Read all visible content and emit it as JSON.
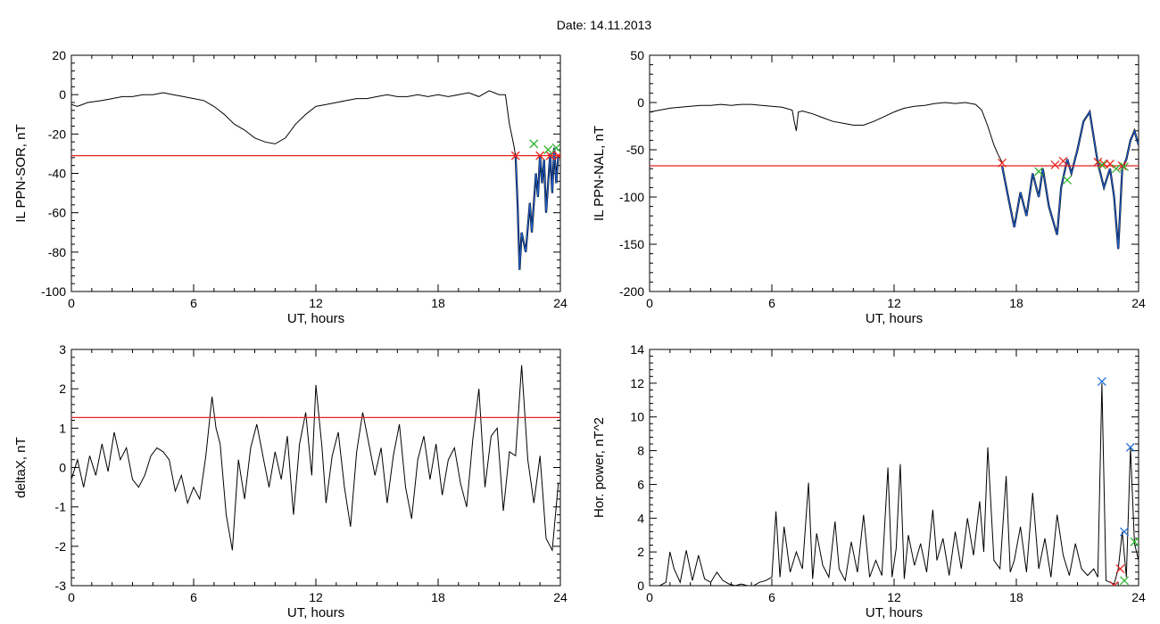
{
  "figure": {
    "title": "Date:  14.11.2013"
  },
  "colors": {
    "trace": "#000000",
    "threshold": "#e8231e",
    "segment": "#1f5fcf",
    "marker_red": "#e8231e",
    "marker_green": "#2fb52f",
    "marker_blue": "#1f6fd6"
  },
  "chart_data": [
    {
      "id": "sor",
      "type": "line",
      "title": "",
      "xlabel": "UT, hours",
      "ylabel": "IL PPN-SOR, nT",
      "xlim": [
        0,
        24
      ],
      "ylim": [
        -100,
        20
      ],
      "xticks": [
        0,
        6,
        12,
        18,
        24
      ],
      "yticks": [
        -100,
        -80,
        -60,
        -40,
        -20,
        0,
        20
      ],
      "threshold": -31,
      "x": [
        0,
        0.3,
        0.8,
        1.5,
        2.0,
        2.5,
        3.0,
        3.5,
        4.0,
        4.5,
        5.0,
        5.5,
        6.0,
        6.5,
        7.0,
        7.5,
        8.0,
        8.5,
        9.0,
        9.5,
        10.0,
        10.5,
        11.0,
        11.5,
        12.0,
        12.5,
        13.0,
        13.5,
        14.0,
        14.5,
        15.0,
        15.5,
        16.0,
        16.5,
        17.0,
        17.5,
        18.0,
        18.5,
        19.0,
        19.5,
        20.0,
        20.5,
        21.0,
        21.3,
        21.5,
        21.7,
        21.8
      ],
      "y": [
        -5,
        -6,
        -4,
        -3,
        -2,
        -1,
        -1,
        0,
        0,
        1,
        0,
        -1,
        -2,
        -3,
        -6,
        -10,
        -15,
        -18,
        -22,
        -24,
        -25,
        -22,
        -15,
        -10,
        -6,
        -5,
        -4,
        -3,
        -2,
        -2,
        -1,
        0,
        -1,
        -1,
        0,
        -1,
        0,
        -1,
        0,
        1,
        -1,
        2,
        0,
        0,
        -15,
        -25,
        -31
      ],
      "segment_x": [
        21.8,
        21.9,
        22.0,
        22.1,
        22.3,
        22.5,
        22.6,
        22.8,
        22.9,
        23.0,
        23.1,
        23.2,
        23.3,
        23.5,
        23.6,
        23.7,
        23.8,
        23.9
      ],
      "segment_y": [
        -31,
        -55,
        -89,
        -70,
        -80,
        -55,
        -70,
        -40,
        -52,
        -31,
        -45,
        -33,
        -60,
        -30,
        -50,
        -27,
        -45,
        -31
      ],
      "markers_red": [
        [
          21.8,
          -31
        ],
        [
          23.0,
          -31
        ],
        [
          23.5,
          -31
        ],
        [
          23.9,
          -31
        ]
      ],
      "markers_green": [
        [
          22.7,
          -25
        ],
        [
          23.4,
          -28
        ],
        [
          23.8,
          -27
        ]
      ]
    },
    {
      "id": "nal",
      "type": "line",
      "title": "",
      "xlabel": "UT, hours",
      "ylabel": "IL PPN-NAL, nT",
      "xlim": [
        0,
        24
      ],
      "ylim": [
        -200,
        50
      ],
      "xticks": [
        0,
        6,
        12,
        18,
        24
      ],
      "yticks": [
        -200,
        -150,
        -100,
        -50,
        0,
        50
      ],
      "threshold": -67,
      "x": [
        0,
        0.5,
        1.0,
        1.5,
        2.0,
        2.5,
        3.0,
        3.5,
        4.0,
        4.5,
        5.0,
        5.5,
        6.0,
        6.5,
        7.0,
        7.1,
        7.2,
        7.3,
        7.5,
        8.0,
        8.5,
        9.0,
        9.5,
        10.0,
        10.5,
        11.0,
        11.5,
        12.0,
        12.5,
        13.0,
        13.5,
        14.0,
        14.5,
        15.0,
        15.5,
        16.0,
        16.3,
        16.6,
        16.9,
        17.1,
        17.3
      ],
      "y": [
        -10,
        -8,
        -6,
        -5,
        -4,
        -3,
        -3,
        -2,
        -3,
        -2,
        -2,
        -3,
        -4,
        -5,
        -8,
        -20,
        -30,
        -10,
        -9,
        -12,
        -16,
        -20,
        -22,
        -24,
        -24,
        -20,
        -15,
        -10,
        -6,
        -4,
        -3,
        -1,
        0,
        -1,
        0,
        -2,
        -8,
        -25,
        -45,
        -55,
        -63
      ],
      "segment_x": [
        17.3,
        17.6,
        17.9,
        18.2,
        18.5,
        18.8,
        19.1,
        19.3,
        19.6,
        20.0,
        20.2,
        20.5,
        20.7,
        21.0,
        21.3,
        21.6,
        22.0,
        22.3,
        22.6,
        22.8,
        23.0,
        23.2,
        23.4,
        23.6,
        23.8,
        24.0
      ],
      "segment_y": [
        -67,
        -100,
        -132,
        -95,
        -120,
        -75,
        -100,
        -70,
        -110,
        -140,
        -90,
        -60,
        -75,
        -50,
        -20,
        -10,
        -64,
        -90,
        -70,
        -100,
        -155,
        -70,
        -60,
        -40,
        -30,
        -45
      ],
      "markers_red": [
        [
          17.3,
          -64
        ],
        [
          19.9,
          -66
        ],
        [
          20.3,
          -62
        ],
        [
          22.0,
          -63
        ],
        [
          22.3,
          -65
        ],
        [
          22.6,
          -65
        ],
        [
          23.2,
          -67
        ]
      ],
      "markers_green": [
        [
          19.1,
          -73
        ],
        [
          20.5,
          -82
        ],
        [
          22.2,
          -66
        ],
        [
          22.9,
          -70
        ],
        [
          23.3,
          -68
        ]
      ]
    },
    {
      "id": "deltax",
      "type": "line",
      "title": "",
      "xlabel": "UT, hours",
      "ylabel": "deltaX, nT",
      "xlim": [
        0,
        24
      ],
      "ylim": [
        -3,
        3
      ],
      "xticks": [
        0,
        6,
        12,
        18,
        24
      ],
      "yticks": [
        -3,
        -2,
        -1,
        0,
        1,
        2,
        3
      ],
      "threshold": 1.27,
      "x": [
        0,
        0.3,
        0.6,
        0.9,
        1.2,
        1.5,
        1.8,
        2.1,
        2.4,
        2.7,
        3.0,
        3.3,
        3.6,
        3.9,
        4.2,
        4.5,
        4.8,
        5.1,
        5.4,
        5.7,
        6.0,
        6.3,
        6.6,
        6.9,
        7.1,
        7.3,
        7.6,
        7.9,
        8.2,
        8.5,
        8.8,
        9.1,
        9.4,
        9.7,
        10.0,
        10.3,
        10.6,
        10.9,
        11.2,
        11.5,
        11.8,
        12.0,
        12.3,
        12.5,
        12.8,
        13.1,
        13.4,
        13.7,
        14.0,
        14.3,
        14.6,
        14.9,
        15.2,
        15.5,
        15.8,
        16.1,
        16.4,
        16.7,
        17.0,
        17.3,
        17.6,
        17.9,
        18.2,
        18.5,
        18.8,
        19.1,
        19.4,
        19.7,
        20.0,
        20.3,
        20.6,
        20.9,
        21.2,
        21.5,
        21.8,
        22.1,
        22.4,
        22.7,
        23.0,
        23.3,
        23.6,
        23.9
      ],
      "y": [
        -0.3,
        0.2,
        -0.5,
        0.3,
        -0.2,
        0.6,
        -0.1,
        0.9,
        0.2,
        0.5,
        -0.3,
        -0.5,
        -0.2,
        0.3,
        0.5,
        0.4,
        0.2,
        -0.6,
        -0.2,
        -0.9,
        -0.5,
        -0.8,
        0.3,
        1.8,
        1.0,
        0.6,
        -1.2,
        -2.1,
        0.2,
        -0.8,
        0.5,
        1.1,
        0.3,
        -0.5,
        0.4,
        -0.3,
        0.8,
        -1.2,
        0.6,
        1.4,
        -0.2,
        2.1,
        0.5,
        -0.9,
        0.3,
        0.9,
        -0.5,
        -1.5,
        0.4,
        1.4,
        0.6,
        -0.2,
        0.5,
        -0.9,
        0.3,
        1.1,
        -0.5,
        -1.3,
        0.2,
        0.8,
        -0.3,
        0.6,
        -0.7,
        0.2,
        0.5,
        -0.4,
        -1.0,
        0.7,
        2.0,
        -0.5,
        0.8,
        1.0,
        -1.1,
        0.4,
        0.3,
        2.6,
        0.2,
        -0.9,
        0.3,
        -1.8,
        -2.1,
        -0.4
      ]
    },
    {
      "id": "power",
      "type": "line",
      "title": "",
      "xlabel": "UT, hours",
      "ylabel": "Hor. power, nT^2",
      "xlim": [
        0,
        24
      ],
      "ylim": [
        0,
        14
      ],
      "xticks": [
        0,
        6,
        12,
        18,
        24
      ],
      "yticks": [
        0,
        2,
        4,
        6,
        8,
        10,
        12,
        14
      ],
      "x": [
        0,
        0.5,
        0.8,
        1.0,
        1.2,
        1.5,
        1.8,
        2.1,
        2.4,
        2.7,
        3.0,
        3.3,
        3.6,
        3.9,
        4.2,
        4.5,
        4.8,
        5.1,
        5.4,
        5.7,
        6.0,
        6.2,
        6.4,
        6.6,
        6.9,
        7.2,
        7.5,
        7.8,
        8.0,
        8.2,
        8.5,
        8.8,
        9.1,
        9.3,
        9.6,
        9.9,
        10.2,
        10.5,
        10.8,
        11.1,
        11.4,
        11.7,
        11.9,
        12.1,
        12.3,
        12.5,
        12.7,
        13.0,
        13.3,
        13.6,
        13.9,
        14.1,
        14.4,
        14.7,
        15.0,
        15.3,
        15.6,
        15.9,
        16.2,
        16.4,
        16.6,
        16.9,
        17.2,
        17.5,
        17.7,
        17.9,
        18.2,
        18.5,
        18.8,
        19.1,
        19.4,
        19.7,
        20.0,
        20.3,
        20.6,
        20.9,
        21.2,
        21.5,
        21.8,
        22.0,
        22.2,
        22.4,
        22.6,
        22.8,
        23.0,
        23.2,
        23.4,
        23.6,
        23.8,
        24.0
      ],
      "y": [
        0,
        0,
        0.2,
        2.0,
        1.0,
        0.2,
        2.1,
        0.3,
        1.8,
        0.4,
        0.2,
        0.8,
        0.3,
        0.1,
        0,
        0.1,
        0,
        0,
        0.2,
        0.3,
        0.5,
        4.4,
        0.5,
        3.5,
        0.8,
        2.0,
        1.0,
        6.1,
        0.4,
        3.1,
        1.2,
        0.5,
        3.8,
        1.0,
        0.3,
        2.6,
        0.8,
        4.2,
        0.5,
        1.5,
        0.6,
        7.0,
        0.5,
        2.2,
        7.2,
        0.4,
        3.0,
        1.2,
        2.5,
        0.8,
        4.5,
        1.5,
        2.8,
        0.6,
        3.2,
        1.0,
        4.0,
        1.8,
        5.0,
        2.0,
        8.2,
        1.5,
        1.0,
        6.5,
        0.8,
        1.5,
        3.5,
        0.8,
        5.5,
        1.0,
        2.8,
        0.5,
        4.2,
        1.8,
        0.6,
        2.5,
        1.0,
        0.6,
        1.0,
        0.5,
        12.0,
        0.3,
        0.2,
        0.1,
        1.0,
        3.2,
        0.5,
        8.2,
        2.5,
        1.5
      ],
      "markers_red": [
        [
          22.8,
          0.0
        ],
        [
          23.1,
          1.0
        ]
      ],
      "markers_green": [
        [
          23.3,
          0.3
        ],
        [
          23.8,
          2.6
        ]
      ],
      "markers_blue": [
        [
          22.2,
          12.1
        ],
        [
          23.3,
          3.2
        ],
        [
          23.6,
          8.2
        ]
      ]
    }
  ]
}
